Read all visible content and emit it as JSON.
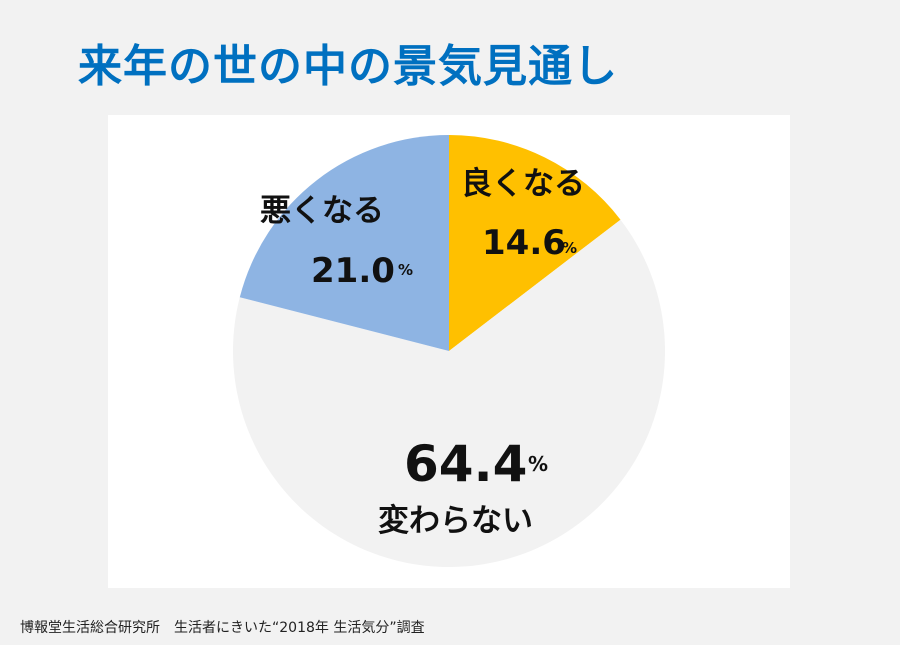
{
  "title": "来年の世の中の景気見通し",
  "source": "博報堂生活総合研究所　生活者にきいた“2018年 生活気分”調査",
  "colors": {
    "title": "#0070c0",
    "background": "#f2f2f2"
  },
  "chart_data": {
    "type": "pie",
    "unit": "%",
    "slices": [
      {
        "name": "良くなる",
        "value": 14.6,
        "color": "#ffc000"
      },
      {
        "name": "変わらない",
        "value": 64.4,
        "color": "#f2f2f2"
      },
      {
        "name": "悪くなる",
        "value": 21.0,
        "color": "#8eb4e3"
      }
    ]
  }
}
